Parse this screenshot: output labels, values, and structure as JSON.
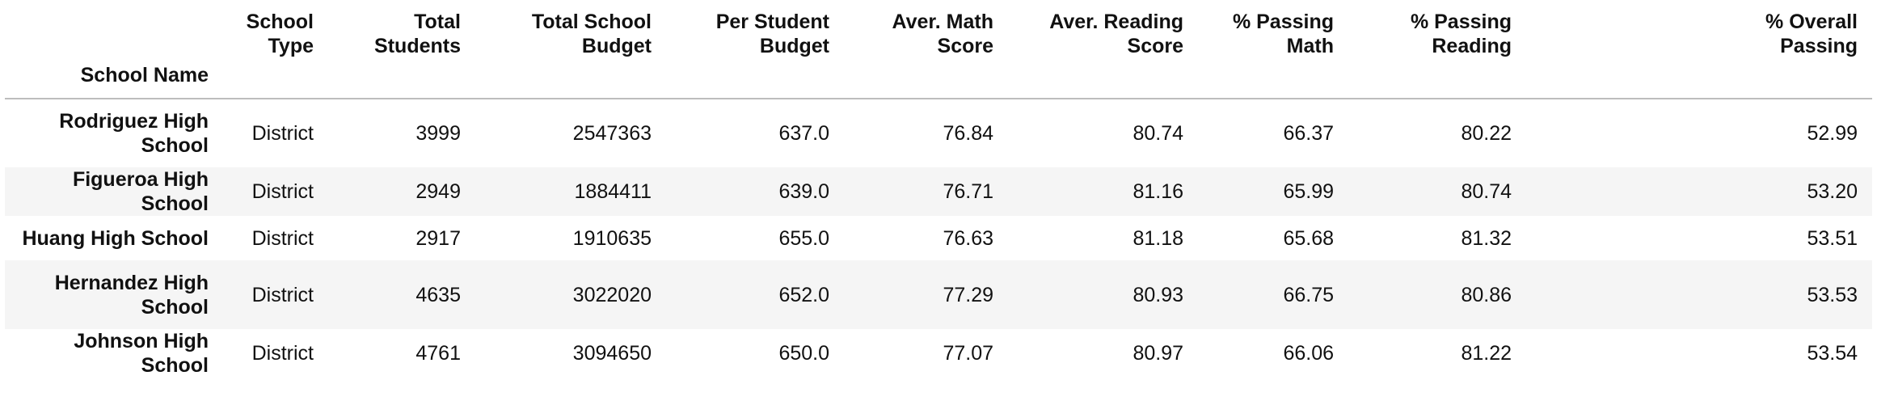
{
  "table": {
    "index_name": "School Name",
    "columns": [
      "School\nType",
      "Total\nStudents",
      "Total School\nBudget",
      "Per Student\nBudget",
      "Aver. Math\nScore",
      "Aver. Reading\nScore",
      "% Passing\nMath",
      "% Passing\nReading",
      "% Overall\nPassing"
    ],
    "rows": [
      {
        "name": "Rodriguez High\nSchool",
        "cells": [
          "District",
          "3999",
          "2547363",
          "637.0",
          "76.84",
          "80.74",
          "66.37",
          "80.22",
          "52.99"
        ]
      },
      {
        "name": "Figueroa High School",
        "cells": [
          "District",
          "2949",
          "1884411",
          "639.0",
          "76.71",
          "81.16",
          "65.99",
          "80.74",
          "53.20"
        ]
      },
      {
        "name": "Huang High School",
        "cells": [
          "District",
          "2917",
          "1910635",
          "655.0",
          "76.63",
          "81.18",
          "65.68",
          "81.32",
          "53.51"
        ]
      },
      {
        "name": "Hernandez High\nSchool",
        "cells": [
          "District",
          "4635",
          "3022020",
          "652.0",
          "77.29",
          "80.93",
          "66.75",
          "80.86",
          "53.53"
        ]
      },
      {
        "name": "Johnson High School",
        "cells": [
          "District",
          "4761",
          "3094650",
          "650.0",
          "77.07",
          "80.97",
          "66.06",
          "81.22",
          "53.54"
        ]
      }
    ]
  }
}
